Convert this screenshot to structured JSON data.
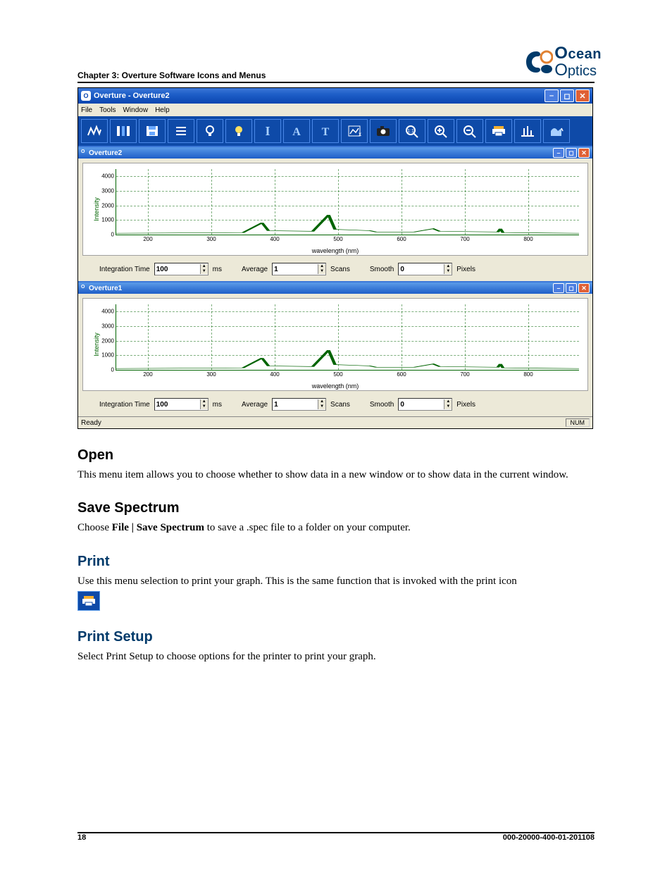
{
  "page": {
    "chapter_header": "Chapter 3: Overture Software Icons and Menus",
    "page_number": "18",
    "doc_number": "000-20000-400-01-201108"
  },
  "logo": {
    "line1": "cean",
    "line2": "ptics"
  },
  "app": {
    "title": "Overture - Overture2",
    "menus": [
      "File",
      "Tools",
      "Window",
      "Help"
    ],
    "toolbar_icons": [
      "spectrum-icon",
      "columns-icon",
      "save-icon",
      "list-icon",
      "bulb-off-icon",
      "bulb-on-icon",
      "i-icon",
      "a-icon",
      "t-icon",
      "select-icon",
      "camera-icon",
      "zoom-fit-icon",
      "zoom-in-icon",
      "zoom-out-icon",
      "print-icon",
      "peaks-icon",
      "area-icon"
    ],
    "status_left": "Ready",
    "status_right": "NUM"
  },
  "chart_common": {
    "y_label": "Intensity",
    "x_label": "wavelength (nm)",
    "x_ticks": [
      "200",
      "300",
      "400",
      "500",
      "600",
      "700",
      "800"
    ],
    "y_ticks": [
      "0",
      "1000",
      "2000",
      "3000",
      "4000"
    ],
    "xlim": [
      150,
      880
    ],
    "ylim": [
      0,
      4500
    ],
    "grid_color": "#006400",
    "line_color": "#006400",
    "background_color": "#ffffff",
    "tick_fontsize": 8,
    "label_fontsize": 9,
    "spectrum_points": [
      [
        150,
        0.02
      ],
      [
        350,
        0.03
      ],
      [
        380,
        0.18
      ],
      [
        390,
        0.06
      ],
      [
        460,
        0.05
      ],
      [
        485,
        0.3
      ],
      [
        495,
        0.08
      ],
      [
        550,
        0.06
      ],
      [
        560,
        0.04
      ],
      [
        620,
        0.04
      ],
      [
        650,
        0.09
      ],
      [
        660,
        0.05
      ],
      [
        752,
        0.04
      ],
      [
        756,
        0.09
      ],
      [
        760,
        0.03
      ],
      [
        880,
        0.02
      ]
    ]
  },
  "windows": [
    {
      "key": "w1",
      "title": "Overture2",
      "integration_time": "100",
      "average": "1",
      "smooth": "0"
    },
    {
      "key": "w2",
      "title": "Overture1",
      "integration_time": "100",
      "average": "1",
      "smooth": "0"
    }
  ],
  "labels": {
    "integration_time": "Integration Time",
    "ms": "ms",
    "average": "Average",
    "scans": "Scans",
    "smooth": "Smooth",
    "pixels": "Pixels"
  },
  "sections": {
    "open": {
      "title": "Open",
      "body": "This menu item allows you to choose whether to show data in a new window or to show data in the current window."
    },
    "save": {
      "title": "Save Spectrum",
      "body_pre": "Choose ",
      "bold": "File | Save Spectrum",
      "body_post": " to save a .spec file to a folder on your computer."
    },
    "print": {
      "title": "Print",
      "body": "Use this menu selection to print your graph. This is the same function that is invoked with the print icon"
    },
    "printsetup": {
      "title": "Print Setup",
      "body": "Select Print Setup to choose options for the printer to print your graph."
    }
  }
}
